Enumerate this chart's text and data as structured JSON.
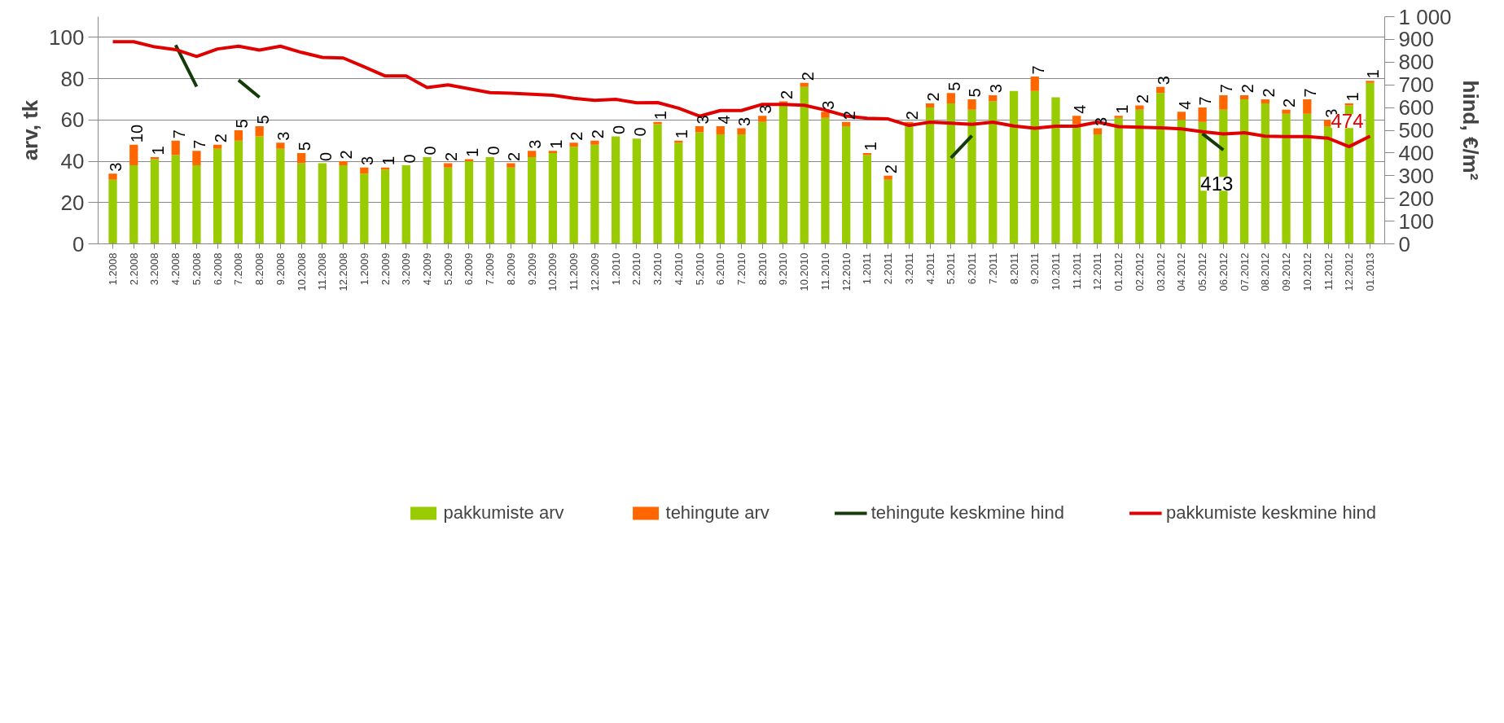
{
  "chart_data": {
    "type": "bar",
    "stacked": true,
    "categories": [
      "1.2008",
      "2.2008",
      "3.2008",
      "4.2008",
      "5.2008",
      "6.2008",
      "7.2008",
      "8.2008",
      "9.2008",
      "10.2008",
      "11.2008",
      "12.2008",
      "1.2009",
      "2.2009",
      "3.2009",
      "4.2009",
      "5.2009",
      "6.2009",
      "7.2009",
      "8.2009",
      "9.2009",
      "10.2009",
      "11.2009",
      "12.2009",
      "1.2010",
      "2.2010",
      "3.2010",
      "4.2010",
      "5.2010",
      "6.2010",
      "7.2010",
      "8.2010",
      "9.2010",
      "10.2010",
      "11.2010",
      "12.2010",
      "1.2011",
      "2.2011",
      "3.2011",
      "4.2011",
      "5.2011",
      "6.2011",
      "7.2011",
      "8.2011",
      "9.2011",
      "10.2011",
      "11.2011",
      "12.2011",
      "01.2012",
      "02.2012",
      "03.2012",
      "04.2012",
      "05.2012",
      "06.2012",
      "07.2012",
      "08.2012",
      "09.2012",
      "10.2012",
      "11.2012",
      "12.2012",
      "01.2013"
    ],
    "series": [
      {
        "name": "pakkumiste arv",
        "color": "#99cc00",
        "values": [
          31,
          38,
          41,
          43,
          38,
          46,
          50,
          52,
          46,
          39,
          39,
          38,
          34,
          36,
          38,
          42,
          37,
          40,
          42,
          37,
          42,
          44,
          47,
          48,
          52,
          51,
          58,
          49,
          54,
          53,
          53,
          59,
          67,
          76,
          61,
          57,
          43,
          31,
          57,
          66,
          68,
          65,
          69,
          74,
          74,
          71,
          58,
          53,
          61,
          65,
          73,
          60,
          59,
          65,
          70,
          68,
          63,
          63,
          57,
          67,
          78
        ]
      },
      {
        "name": "tehingute arv",
        "color": "#ff6600",
        "values": [
          3,
          10,
          1,
          7,
          7,
          2,
          5,
          5,
          3,
          5,
          0,
          2,
          3,
          1,
          0,
          0,
          2,
          1,
          0,
          2,
          3,
          1,
          2,
          2,
          0,
          0,
          1,
          1,
          3,
          4,
          3,
          3,
          2,
          2,
          3,
          2,
          1,
          2,
          2,
          2,
          5,
          5,
          3,
          0,
          7,
          0,
          4,
          3,
          1,
          2,
          3,
          4,
          7,
          7,
          2,
          2,
          2,
          7,
          3,
          1,
          1
        ],
        "value_labels": [
          "3",
          "10",
          "1",
          "7",
          "7",
          "2",
          "5",
          "5",
          "3",
          "5",
          "0",
          "2",
          "3",
          "1",
          "0",
          "0",
          "2",
          "1",
          "0",
          "2",
          "3",
          "1",
          "2",
          "2",
          "0",
          "0",
          "1",
          "1",
          "3",
          "4",
          "3",
          "3",
          "2",
          "2",
          "3",
          "2",
          "1",
          "2",
          "2",
          "2",
          "5",
          "5",
          "3",
          null,
          "7",
          null,
          "4",
          "3",
          "1",
          "2",
          "3",
          "4",
          "7",
          "7",
          "2",
          "2",
          "2",
          "7",
          "3",
          "1",
          "1"
        ]
      },
      {
        "name": "tehingute keskmine hind",
        "type": "line",
        "axis": "y2",
        "color": "#143c0a",
        "values": [
          null,
          null,
          null,
          875,
          692,
          null,
          721,
          645,
          null,
          null,
          null,
          null,
          null,
          null,
          null,
          null,
          null,
          null,
          null,
          null,
          null,
          null,
          null,
          null,
          null,
          null,
          null,
          null,
          null,
          null,
          null,
          null,
          null,
          null,
          null,
          null,
          null,
          null,
          null,
          null,
          379,
          476,
          null,
          null,
          null,
          null,
          null,
          null,
          null,
          null,
          null,
          null,
          485,
          413,
          null,
          null,
          null,
          null,
          null,
          null,
          null
        ],
        "value_labels": [
          null,
          null,
          null,
          null,
          null,
          null,
          null,
          null,
          null,
          null,
          null,
          null,
          null,
          null,
          null,
          null,
          null,
          null,
          null,
          null,
          null,
          null,
          null,
          null,
          null,
          null,
          null,
          null,
          null,
          null,
          null,
          null,
          null,
          null,
          null,
          null,
          null,
          null,
          null,
          null,
          null,
          null,
          null,
          null,
          null,
          null,
          null,
          null,
          null,
          null,
          null,
          null,
          null,
          "413",
          null,
          null,
          null,
          null,
          null,
          null,
          null
        ]
      },
      {
        "name": "pakkumiste keskmine hind",
        "type": "line",
        "axis": "y2",
        "color": "#e00000",
        "values": [
          890,
          890,
          867,
          855,
          825,
          858,
          870,
          853,
          870,
          843,
          821,
          818,
          779,
          739,
          739,
          688,
          700,
          683,
          666,
          663,
          659,
          654,
          641,
          632,
          636,
          621,
          622,
          597,
          562,
          587,
          587,
          614,
          614,
          610,
          589,
          563,
          553,
          550,
          521,
          536,
          531,
          526,
          536,
          519,
          509,
          518,
          518,
          536,
          516,
          513,
          511,
          506,
          494,
          484,
          489,
          474,
          472,
          472,
          465,
          428,
          474
        ],
        "value_labels": [
          null,
          null,
          null,
          null,
          null,
          null,
          null,
          null,
          null,
          null,
          null,
          null,
          null,
          null,
          null,
          null,
          null,
          null,
          null,
          null,
          null,
          null,
          null,
          null,
          null,
          null,
          null,
          null,
          null,
          null,
          null,
          null,
          null,
          null,
          null,
          null,
          null,
          null,
          null,
          null,
          null,
          null,
          null,
          null,
          null,
          null,
          null,
          null,
          null,
          null,
          null,
          null,
          null,
          null,
          null,
          null,
          null,
          null,
          null,
          null,
          "474"
        ]
      }
    ],
    "ylabel": "arv, tk",
    "y2label": "hind, €/m²",
    "ylim": [
      0,
      110
    ],
    "yticks": [
      0,
      20,
      40,
      60,
      80,
      100
    ],
    "y2lim": [
      0,
      1000
    ],
    "y2ticks": [
      0,
      100,
      200,
      300,
      400,
      500,
      600,
      700,
      800,
      900,
      {
        "value": 1000,
        "label": "1 000"
      }
    ],
    "grid": "y",
    "legend": "bottom"
  }
}
